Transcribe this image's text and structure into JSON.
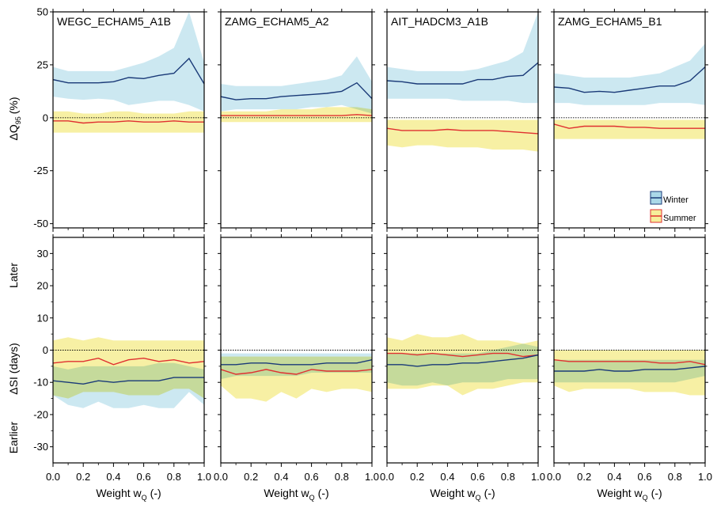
{
  "panels": [
    "WEGC_ECHAM5_A1B",
    "ZAMG_ECHAM5_A2",
    "AIT_HADCM3_A1B",
    "ZAMG_ECHAM5_B1"
  ],
  "xlabel": {
    "text": "Weight w",
    "sub": "Q",
    "unit": "(-)"
  },
  "top_ylabel": {
    "pre": "ΔQ",
    "sub": "95",
    "unit": "(%)"
  },
  "bottom_ylabel": {
    "text": "ΔSI (days)",
    "later": "Later",
    "earlier": "Earlier"
  },
  "legend": {
    "winter": "Winter",
    "summer": "Summer"
  },
  "colors": {
    "winter_line": "#1a3a78",
    "winter_band": "#aad8e8",
    "summer_line": "#e03030",
    "summer_band": "#f6ee9a",
    "overlap": "#c9e2b4"
  },
  "chart_data": [
    {
      "type": "area",
      "title": "ΔQ95 (%)",
      "ylim": [
        -52,
        50
      ],
      "yticks": [
        -50,
        -25,
        0,
        25,
        50
      ],
      "xlim": [
        0,
        1
      ],
      "xticks": [
        0.0,
        0.2,
        0.4,
        0.6,
        0.8,
        1.0
      ],
      "x": [
        0,
        0.1,
        0.2,
        0.3,
        0.4,
        0.5,
        0.6,
        0.7,
        0.8,
        0.9,
        1.0
      ],
      "panels": [
        {
          "name": "WEGC_ECHAM5_A1B",
          "winter": {
            "mean": [
              18,
              16.5,
              16.5,
              16.5,
              17,
              19,
              18.5,
              20,
              21,
              28,
              16
            ],
            "lower": [
              10,
              9,
              8.5,
              9,
              8.5,
              6,
              7,
              8,
              8,
              6,
              3
            ],
            "upper": [
              24,
              22,
              22,
              22,
              22,
              24,
              26,
              29,
              33,
              50,
              26
            ]
          },
          "summer": {
            "mean": [
              -1.5,
              -1.5,
              -2.5,
              -2,
              -2,
              -1.5,
              -2,
              -2,
              -1.5,
              -2,
              -2
            ],
            "lower": [
              -7,
              -7,
              -7,
              -7,
              -7,
              -7,
              -7,
              -7,
              -7,
              -7,
              -7
            ],
            "upper": [
              3,
              3,
              2,
              2,
              3,
              3,
              2,
              2,
              2,
              3,
              3
            ]
          }
        },
        {
          "name": "ZAMG_ECHAM5_A2",
          "winter": {
            "mean": [
              10,
              8.5,
              9,
              9,
              10,
              10.5,
              11,
              11.5,
              12.5,
              16.5,
              9
            ],
            "lower": [
              3,
              4,
              4,
              4,
              4,
              4,
              5,
              5,
              6,
              4,
              2
            ],
            "upper": [
              16,
              15,
              15,
              15,
              15,
              16,
              17,
              18,
              20,
              29,
              17
            ]
          },
          "summer": {
            "mean": [
              1,
              1,
              1,
              1,
              1,
              1,
              1,
              1,
              1,
              1.5,
              1
            ],
            "lower": [
              -2,
              -2,
              -2,
              -2,
              -2,
              -2,
              -2,
              -2,
              -2,
              -2,
              -2
            ],
            "upper": [
              3,
              3,
              3,
              3,
              4,
              4,
              4,
              5,
              5,
              5,
              4
            ]
          }
        },
        {
          "name": "AIT_HADCM3_A1B",
          "winter": {
            "mean": [
              17.5,
              17,
              16,
              16,
              16,
              16,
              18,
              18,
              19.5,
              20,
              26
            ],
            "lower": [
              9,
              9,
              9,
              9,
              9,
              8,
              8,
              8,
              8,
              7,
              7
            ],
            "upper": [
              24,
              23,
              22,
              22,
              22,
              22,
              23,
              25,
              27,
              31,
              50
            ]
          },
          "summer": {
            "mean": [
              -5,
              -6,
              -6,
              -6,
              -5.5,
              -6,
              -6,
              -6,
              -6.5,
              -7,
              -7.5
            ],
            "lower": [
              -13,
              -14,
              -13,
              -13,
              -14,
              -14,
              -14,
              -15,
              -15,
              -15,
              -16
            ],
            "upper": [
              -1,
              -1,
              -1,
              -1,
              -1,
              -1,
              -1,
              -1,
              -1,
              -1,
              -1
            ]
          }
        },
        {
          "name": "ZAMG_ECHAM5_B1",
          "winter": {
            "mean": [
              14.5,
              14,
              12,
              12.5,
              12,
              13,
              14,
              15,
              15,
              17.5,
              24
            ],
            "lower": [
              7,
              7,
              6,
              6,
              6,
              6,
              6,
              7,
              7,
              7,
              6
            ],
            "upper": [
              21,
              20,
              19,
              19,
              19,
              19,
              20,
              21,
              24,
              27,
              35
            ]
          },
          "summer": {
            "mean": [
              -3,
              -5,
              -4,
              -4,
              -4,
              -4.5,
              -4.5,
              -5,
              -5,
              -5,
              -5
            ],
            "lower": [
              -10,
              -10,
              -10,
              -10,
              -10,
              -10,
              -10,
              -10,
              -10,
              -10,
              -10
            ],
            "upper": [
              -1,
              -1,
              -1,
              -1,
              -1,
              -1,
              -1,
              -1,
              -1,
              -1,
              -1
            ]
          }
        }
      ]
    },
    {
      "type": "area",
      "title": "ΔSI (days)",
      "ylim": [
        -35,
        35
      ],
      "yticks": [
        -30,
        -20,
        -10,
        0,
        10,
        20,
        30
      ],
      "xlim": [
        0,
        1
      ],
      "xticks": [
        0.0,
        0.2,
        0.4,
        0.6,
        0.8,
        1.0
      ],
      "x": [
        0,
        0.1,
        0.2,
        0.3,
        0.4,
        0.5,
        0.6,
        0.7,
        0.8,
        0.9,
        1.0
      ],
      "panels": [
        {
          "name": "WEGC_ECHAM5_A1B",
          "winter": {
            "mean": [
              -9.5,
              -10,
              -10.5,
              -9.5,
              -10,
              -9.5,
              -9.5,
              -9.5,
              -8.5,
              -8.5,
              -8.5
            ],
            "lower": [
              -14,
              -17,
              -18,
              -16,
              -18,
              -18,
              -17,
              -18,
              -18,
              -13,
              -17
            ],
            "upper": [
              -5,
              -6,
              -5,
              -5,
              -5,
              -5,
              -5,
              -4,
              -4,
              -5,
              -6
            ]
          },
          "summer": {
            "mean": [
              -4,
              -3.5,
              -3.5,
              -2.5,
              -4.5,
              -3,
              -2.5,
              -3.5,
              -3,
              -4,
              -3.5
            ],
            "lower": [
              -14,
              -15,
              -13,
              -13,
              -13,
              -14,
              -14,
              -14,
              -12,
              -12,
              -15
            ],
            "upper": [
              3,
              4,
              3,
              4,
              3,
              3,
              3,
              3,
              3,
              3,
              3
            ]
          }
        },
        {
          "name": "ZAMG_ECHAM5_A2",
          "winter": {
            "mean": [
              -4.5,
              -4.5,
              -4,
              -4,
              -4.5,
              -4.5,
              -4.5,
              -4,
              -4,
              -4,
              -3
            ],
            "lower": [
              -9,
              -8,
              -8,
              -8,
              -8,
              -8,
              -7,
              -7,
              -7,
              -7,
              -7
            ],
            "upper": [
              -1,
              -1,
              -1,
              -1,
              -1,
              -1,
              -1,
              -1,
              -1,
              -1,
              -1
            ]
          },
          "summer": {
            "mean": [
              -6,
              -7.5,
              -7,
              -6,
              -7,
              -7.5,
              -6,
              -6.5,
              -6.5,
              -6.5,
              -6
            ],
            "lower": [
              -11,
              -15,
              -15,
              -16,
              -13,
              -15,
              -12,
              -13,
              -12,
              -12,
              -13
            ],
            "upper": [
              -2,
              -2,
              -2,
              -2,
              -2,
              -2,
              -2,
              -2,
              -2,
              -2,
              -2
            ]
          }
        },
        {
          "name": "AIT_HADCM3_A1B",
          "winter": {
            "mean": [
              -4.5,
              -4.5,
              -5,
              -4.5,
              -4.5,
              -4,
              -4,
              -3.5,
              -3,
              -2.5,
              -1.5
            ],
            "lower": [
              -10,
              -11,
              -11,
              -10,
              -11,
              -10,
              -10,
              -10,
              -9,
              -9,
              -9
            ],
            "upper": [
              -1,
              -1,
              -1,
              -1,
              -1,
              -1,
              -1,
              0,
              1,
              2,
              1
            ]
          },
          "summer": {
            "mean": [
              -1,
              -1,
              -1.5,
              -1,
              -1.5,
              -2,
              -1.5,
              -1,
              -1,
              -2,
              -1.5
            ],
            "lower": [
              -12,
              -12,
              -12,
              -11,
              -11,
              -14,
              -12,
              -12,
              -11,
              -10,
              -10
            ],
            "upper": [
              4,
              3,
              5,
              4,
              4,
              5,
              3,
              3,
              3,
              2,
              3
            ]
          }
        },
        {
          "name": "ZAMG_ECHAM5_B1",
          "winter": {
            "mean": [
              -6.5,
              -6.5,
              -6.5,
              -6,
              -6.5,
              -6.5,
              -6,
              -6,
              -6,
              -5.5,
              -5
            ],
            "lower": [
              -10,
              -10,
              -10,
              -10,
              -10,
              -10,
              -10,
              -10,
              -10,
              -9,
              -8
            ],
            "upper": [
              -3,
              -3,
              -3,
              -3,
              -3,
              -3,
              -3,
              -3,
              -3,
              -3,
              -3
            ]
          },
          "summer": {
            "mean": [
              -3,
              -3.5,
              -3.5,
              -3.5,
              -3.5,
              -3.5,
              -3.5,
              -4,
              -4,
              -3.5,
              -4.5
            ],
            "lower": [
              -11,
              -13,
              -12,
              -12,
              -12,
              -12,
              -13,
              -13,
              -13,
              -14,
              -14
            ],
            "upper": [
              0,
              0,
              0,
              0,
              0,
              0,
              0,
              0,
              0,
              0,
              0
            ]
          }
        }
      ]
    }
  ]
}
